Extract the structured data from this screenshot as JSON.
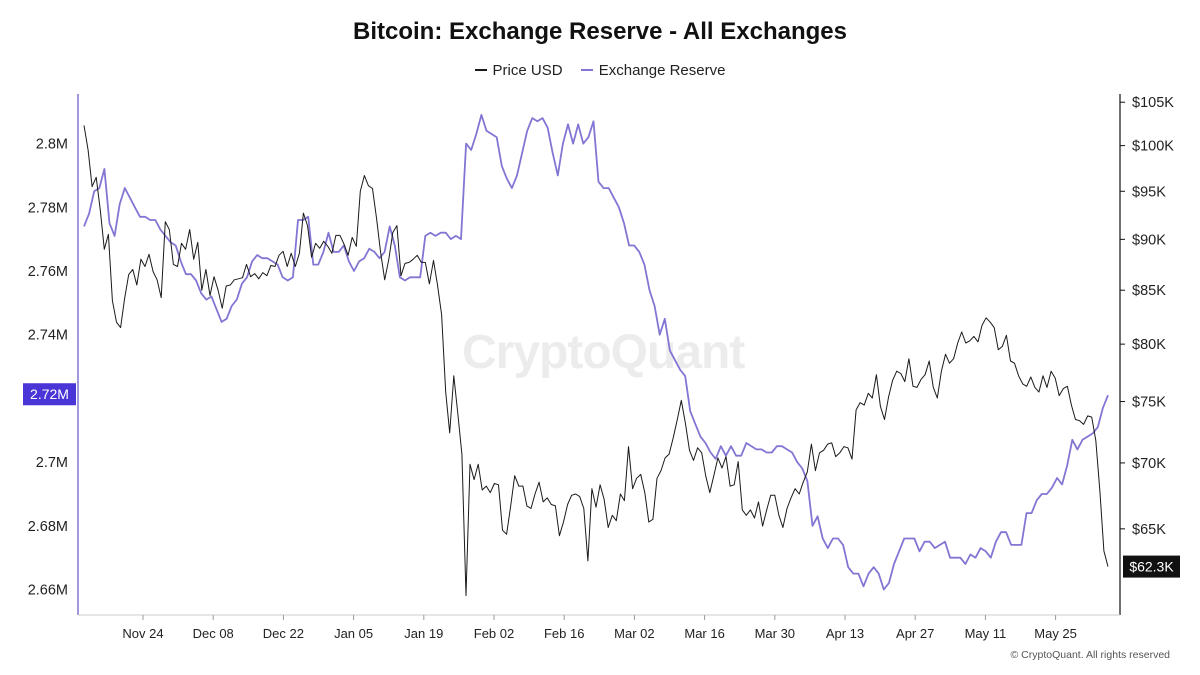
{
  "chart_data": {
    "type": "line",
    "title": "Bitcoin: Exchange Reserve - All Exchanges",
    "legend": {
      "position": "top-center"
    },
    "grid": false,
    "watermark": "CryptoQuant",
    "copyright": "© CryptoQuant. All rights reserved",
    "colors": {
      "price": "#1a1a1a",
      "reserve": "#8176d3",
      "reserve_badge": "#4a35d6",
      "price_badge": "#111111"
    },
    "x_tick_labels": [
      "Nov 24",
      "Dec 08",
      "Dec 22",
      "Jan 05",
      "Jan 19",
      "Feb 02",
      "Feb 16",
      "Mar 02",
      "Mar 16",
      "Mar 30",
      "Apr 13",
      "Apr 27",
      "May 11",
      "May 25"
    ],
    "left_axis": {
      "series": "Exchange Reserve",
      "ylim": [
        2.652,
        2.8143
      ],
      "ticks": [
        2.66,
        2.68,
        2.7,
        2.72,
        2.74,
        2.76,
        2.78,
        2.8
      ],
      "tick_labels": [
        "2.66M",
        "2.68M",
        "2.7M",
        "2.72M",
        "2.74M",
        "2.76M",
        "2.78M",
        "2.8M"
      ],
      "current_label": "2.72M",
      "current_value": 2.7213
    },
    "right_axis": {
      "series": "Price USD",
      "scale": "log",
      "ylim": [
        59000,
        105500
      ],
      "ticks": [
        65000,
        70000,
        75000,
        80000,
        85000,
        90000,
        95000,
        100000,
        105000
      ],
      "tick_labels": [
        "$65K",
        "$70K",
        "$75K",
        "$80K",
        "$85K",
        "$90K",
        "$95K",
        "$100K",
        "$105K"
      ],
      "current_label": "$62.3K",
      "current_value": 62300
    },
    "series": [
      {
        "name": "Price USD",
        "axis": "right",
        "values": [
          102300,
          99500,
          95500,
          96500,
          93000,
          89000,
          90500,
          84000,
          82000,
          81500,
          84200,
          86500,
          87000,
          85500,
          88000,
          87300,
          88500,
          86800,
          86000,
          84300,
          91800,
          91000,
          87500,
          87300,
          89600,
          89000,
          91000,
          88000,
          89700,
          85000,
          87000,
          84500,
          86300,
          85000,
          83300,
          85400,
          85500,
          86000,
          86100,
          86200,
          87500,
          86300,
          86600,
          86100,
          86700,
          86400,
          87400,
          87300,
          88400,
          88800,
          87300,
          88600,
          87300,
          88600,
          92700,
          91400,
          88200,
          89600,
          89100,
          89800,
          89300,
          88600,
          90400,
          90400,
          89500,
          88400,
          90200,
          89300,
          95000,
          96700,
          95600,
          95300,
          92100,
          88700,
          86000,
          88000,
          90700,
          91400,
          86400,
          87600,
          87700,
          88000,
          88400,
          87700,
          87700,
          85600,
          87900,
          85500,
          82700,
          75800,
          72400,
          77200,
          74000,
          70700,
          60300,
          69900,
          68700,
          69900,
          67900,
          68200,
          67700,
          68400,
          68300,
          64900,
          64600,
          66700,
          69000,
          68200,
          68200,
          66700,
          66500,
          67600,
          68500,
          67000,
          67300,
          66800,
          66700,
          64500,
          65500,
          66800,
          67500,
          67600,
          67400,
          66500,
          62700,
          68000,
          66600,
          68300,
          67200,
          65100,
          66000,
          65600,
          67600,
          67100,
          71300,
          68000,
          68800,
          69100,
          67700,
          65500,
          65700,
          68800,
          69400,
          70400,
          70700,
          72000,
          73500,
          75100,
          73200,
          71000,
          70200,
          71200,
          70800,
          69000,
          67700,
          69000,
          70400,
          69600,
          70500,
          68200,
          68300,
          70100,
          66400,
          66000,
          66400,
          65800,
          67000,
          65200,
          66400,
          67500,
          67500,
          66000,
          65100,
          66500,
          67300,
          68000,
          67600,
          68500,
          69300,
          71500,
          69400,
          70800,
          71000,
          71500,
          71600,
          70500,
          70800,
          71300,
          71200,
          70300,
          74300,
          74900,
          74700,
          75700,
          75300,
          77300,
          74600,
          73500,
          75400,
          76800,
          77600,
          77400,
          76700,
          78700,
          76300,
          76200,
          76900,
          77300,
          78500,
          76200,
          75300,
          77600,
          79100,
          78300,
          78700,
          80100,
          81100,
          80100,
          80300,
          80700,
          80200,
          81700,
          82400,
          82000,
          81500,
          79500,
          79800,
          80800,
          78500,
          78300,
          77200,
          76500,
          76300,
          77100,
          76200,
          75800,
          77200,
          76200,
          77600,
          77000,
          75500,
          76100,
          76300,
          74700,
          73500,
          73400,
          73100,
          73800,
          73700,
          71800,
          67800,
          63400,
          62300
        ]
      },
      {
        "name": "Exchange Reserve",
        "axis": "left",
        "values": [
          2.774,
          2.778,
          2.785,
          2.786,
          2.792,
          2.775,
          2.771,
          2.781,
          2.786,
          2.783,
          2.78,
          2.777,
          2.777,
          2.776,
          2.776,
          2.773,
          2.771,
          2.769,
          2.768,
          2.763,
          2.759,
          2.759,
          2.757,
          2.753,
          2.751,
          2.752,
          2.748,
          2.744,
          2.745,
          2.749,
          2.751,
          2.756,
          2.758,
          2.763,
          2.765,
          2.764,
          2.764,
          2.763,
          2.762,
          2.758,
          2.757,
          2.758,
          2.776,
          2.776,
          2.777,
          2.762,
          2.762,
          2.766,
          2.772,
          2.766,
          2.766,
          2.768,
          2.763,
          2.76,
          2.763,
          2.764,
          2.767,
          2.766,
          2.764,
          2.766,
          2.774,
          2.768,
          2.758,
          2.757,
          2.758,
          2.758,
          2.758,
          2.771,
          2.772,
          2.771,
          2.772,
          2.772,
          2.77,
          2.771,
          2.77,
          2.8,
          2.798,
          2.803,
          2.809,
          2.804,
          2.803,
          2.802,
          2.793,
          2.789,
          2.786,
          2.79,
          2.797,
          2.804,
          2.808,
          2.807,
          2.808,
          2.805,
          2.797,
          2.79,
          2.8,
          2.806,
          2.8,
          2.806,
          2.8,
          2.802,
          2.807,
          2.788,
          2.786,
          2.786,
          2.783,
          2.78,
          2.775,
          2.768,
          2.768,
          2.766,
          2.762,
          2.754,
          2.749,
          2.74,
          2.745,
          2.735,
          2.732,
          2.729,
          2.727,
          2.716,
          2.712,
          2.708,
          2.706,
          2.703,
          2.701,
          2.705,
          2.702,
          2.705,
          2.702,
          2.702,
          2.706,
          2.705,
          2.704,
          2.704,
          2.703,
          2.703,
          2.705,
          2.705,
          2.704,
          2.703,
          2.7,
          2.698,
          2.694,
          2.68,
          2.683,
          2.676,
          2.673,
          2.676,
          2.676,
          2.674,
          2.667,
          2.665,
          2.665,
          2.661,
          2.665,
          2.667,
          2.665,
          2.66,
          2.662,
          2.668,
          2.672,
          2.676,
          2.676,
          2.676,
          2.672,
          2.675,
          2.675,
          2.673,
          2.674,
          2.675,
          2.67,
          2.67,
          2.67,
          2.668,
          2.671,
          2.67,
          2.673,
          2.672,
          2.67,
          2.675,
          2.678,
          2.678,
          2.674,
          2.674,
          2.674,
          2.684,
          2.684,
          2.688,
          2.69,
          2.69,
          2.692,
          2.695,
          2.693,
          2.699,
          2.707,
          2.704,
          2.707,
          2.708,
          2.709,
          2.711,
          2.717,
          2.721
        ]
      }
    ]
  }
}
